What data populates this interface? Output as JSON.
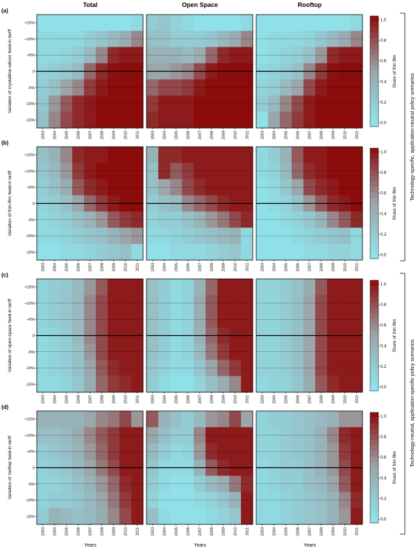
{
  "figure": {
    "column_titles": [
      "Total",
      "Open Space",
      "Rooftop"
    ],
    "row_labels": [
      "(a)",
      "(b)",
      "(c)",
      "(d)"
    ],
    "row_ylabels": [
      "Variation of crystalline-silicon feed-in tariff",
      "Variation of thin-film feed-in tariff",
      "Variation of open-space feed-in tariff",
      "Variation of rooftop feed-in tariff"
    ],
    "xlabel": "Years",
    "colorbar_label": "Share of thin film",
    "colorbar_ticks": [
      "1.0",
      "0.8",
      "0.6",
      "0.4",
      "0.2",
      "0.0"
    ],
    "scenario_labels": [
      "Technology-specific, application-neutral policy scenarios",
      "Technology-neutral, application-specific policy scenarios"
    ],
    "colors": {
      "low": "#8fe6ef",
      "mid": "#9aa6aa",
      "high": "#8c0b0b",
      "background": "#ffffff"
    }
  },
  "chart_data": {
    "type": "heatmap",
    "x": [
      "2003",
      "2004",
      "2005",
      "2006",
      "2007",
      "2008",
      "2009",
      "2010",
      "2011"
    ],
    "y": [
      "+15%",
      "+10%",
      "+5%",
      "0",
      "-5%",
      "-10%",
      "-15%"
    ],
    "y_values": [
      15,
      10,
      5,
      0,
      -5,
      -10,
      -15
    ],
    "value_range": [
      0,
      1
    ],
    "colorbar_ticks": [
      0.0,
      0.2,
      0.4,
      0.6,
      0.8,
      1.0
    ],
    "grid": "dotted lines at +10%, +5%, -5%, -10%; solid line at 0",
    "note": "Cell values are shares of thin film, estimated from colour; rows top to bottom = +15% to -15%",
    "panels": [
      {
        "row": "(a)",
        "column": "Total",
        "values": [
          [
            0.05,
            0.05,
            0.05,
            0.05,
            0.05,
            0.05,
            0.05,
            0.05,
            0.1
          ],
          [
            0.1,
            0.1,
            0.1,
            0.1,
            0.2,
            0.25,
            0.35,
            0.45,
            0.6
          ],
          [
            0.1,
            0.1,
            0.15,
            0.2,
            0.35,
            0.6,
            0.9,
            0.95,
            0.95
          ],
          [
            0.15,
            0.2,
            0.25,
            0.35,
            0.7,
            0.9,
            0.98,
            1.0,
            1.0
          ],
          [
            0.2,
            0.3,
            0.5,
            0.6,
            0.85,
            0.95,
            1.0,
            1.0,
            1.0
          ],
          [
            0.25,
            0.55,
            0.75,
            0.9,
            0.95,
            1.0,
            1.0,
            1.0,
            1.0
          ],
          [
            0.3,
            0.6,
            0.8,
            0.9,
            0.95,
            1.0,
            1.0,
            1.0,
            1.0
          ]
        ]
      },
      {
        "row": "(a)",
        "column": "Open Space",
        "values": [
          [
            0.2,
            0.25,
            0.15,
            0.1,
            0.05,
            0.05,
            0.05,
            0.05,
            0.1
          ],
          [
            0.3,
            0.3,
            0.2,
            0.2,
            0.2,
            0.25,
            0.35,
            0.45,
            0.6
          ],
          [
            0.4,
            0.4,
            0.4,
            0.35,
            0.45,
            0.7,
            0.9,
            0.95,
            0.95
          ],
          [
            0.5,
            0.5,
            0.55,
            0.6,
            0.8,
            0.95,
            1.0,
            1.0,
            1.0
          ],
          [
            0.7,
            0.8,
            0.8,
            0.85,
            0.95,
            1.0,
            1.0,
            1.0,
            1.0
          ],
          [
            0.85,
            0.95,
            0.95,
            0.95,
            1.0,
            1.0,
            1.0,
            1.0,
            1.0
          ],
          [
            0.9,
            0.95,
            0.95,
            0.95,
            1.0,
            1.0,
            1.0,
            1.0,
            1.0
          ]
        ]
      },
      {
        "row": "(a)",
        "column": "Rooftop",
        "values": [
          [
            0.05,
            0.05,
            0.05,
            0.05,
            0.05,
            0.05,
            0.05,
            0.05,
            0.1
          ],
          [
            0.05,
            0.1,
            0.1,
            0.1,
            0.15,
            0.25,
            0.35,
            0.45,
            0.6
          ],
          [
            0.05,
            0.1,
            0.15,
            0.2,
            0.3,
            0.55,
            0.9,
            0.95,
            0.95
          ],
          [
            0.1,
            0.15,
            0.2,
            0.3,
            0.6,
            0.85,
            0.98,
            1.0,
            1.0
          ],
          [
            0.15,
            0.2,
            0.35,
            0.5,
            0.8,
            0.95,
            1.0,
            1.0,
            1.0
          ],
          [
            0.2,
            0.35,
            0.6,
            0.8,
            0.95,
            1.0,
            1.0,
            1.0,
            1.0
          ],
          [
            0.05,
            0.5,
            0.7,
            0.85,
            0.95,
            1.0,
            1.0,
            1.0,
            1.0
          ]
        ]
      },
      {
        "row": "(b)",
        "column": "Total",
        "values": [
          [
            0.3,
            0.4,
            0.6,
            0.9,
            0.95,
            0.95,
            1.0,
            1.0,
            1.0
          ],
          [
            0.25,
            0.35,
            0.55,
            0.85,
            0.95,
            1.0,
            1.0,
            1.0,
            1.0
          ],
          [
            0.2,
            0.3,
            0.45,
            0.75,
            0.9,
            0.95,
            1.0,
            1.0,
            1.0
          ],
          [
            0.15,
            0.2,
            0.3,
            0.5,
            0.7,
            0.85,
            0.95,
            1.0,
            1.0
          ],
          [
            0.1,
            0.15,
            0.2,
            0.3,
            0.4,
            0.55,
            0.75,
            0.85,
            0.9
          ],
          [
            0.1,
            0.1,
            0.15,
            0.2,
            0.25,
            0.3,
            0.4,
            0.5,
            0.55
          ],
          [
            0.05,
            0.05,
            0.1,
            0.1,
            0.15,
            0.2,
            0.25,
            0.3,
            0.1
          ]
        ]
      },
      {
        "row": "(b)",
        "column": "Open Space",
        "values": [
          [
            0.4,
            0.9,
            0.9,
            0.95,
            0.95,
            0.95,
            0.95,
            0.95,
            0.95
          ],
          [
            0.3,
            0.9,
            0.75,
            0.85,
            0.95,
            0.95,
            0.95,
            0.95,
            0.95
          ],
          [
            0.3,
            0.5,
            0.6,
            0.8,
            0.9,
            0.95,
            0.95,
            0.95,
            0.95
          ],
          [
            0.2,
            0.3,
            0.35,
            0.6,
            0.7,
            0.8,
            0.9,
            0.95,
            0.95
          ],
          [
            0.15,
            0.2,
            0.2,
            0.3,
            0.4,
            0.55,
            0.65,
            0.8,
            0.9
          ],
          [
            0.1,
            0.1,
            0.15,
            0.2,
            0.25,
            0.3,
            0.35,
            0.4,
            0.1
          ],
          [
            0.05,
            0.05,
            0.1,
            0.1,
            0.1,
            0.15,
            0.2,
            0.25,
            0.1
          ]
        ]
      },
      {
        "row": "(b)",
        "column": "Rooftop",
        "values": [
          [
            0.1,
            0.2,
            0.4,
            0.75,
            0.95,
            0.95,
            1.0,
            1.0,
            1.0
          ],
          [
            0.1,
            0.15,
            0.35,
            0.7,
            0.9,
            0.95,
            1.0,
            1.0,
            1.0
          ],
          [
            0.05,
            0.1,
            0.25,
            0.5,
            0.8,
            0.9,
            0.95,
            1.0,
            1.0
          ],
          [
            0.05,
            0.1,
            0.15,
            0.3,
            0.55,
            0.75,
            0.9,
            0.95,
            1.0
          ],
          [
            0.05,
            0.05,
            0.1,
            0.15,
            0.25,
            0.4,
            0.6,
            0.75,
            0.9
          ],
          [
            0.05,
            0.05,
            0.05,
            0.1,
            0.15,
            0.2,
            0.25,
            0.3,
            0.1
          ],
          [
            0.05,
            0.05,
            0.05,
            0.05,
            0.1,
            0.1,
            0.15,
            0.15,
            0.1
          ]
        ]
      },
      {
        "row": "(c)",
        "column": "Total",
        "values": [
          [
            0.15,
            0.2,
            0.25,
            0.35,
            0.55,
            0.75,
            0.95,
            0.95,
            0.95
          ],
          [
            0.15,
            0.2,
            0.25,
            0.35,
            0.6,
            0.8,
            0.95,
            0.95,
            0.95
          ],
          [
            0.15,
            0.2,
            0.25,
            0.35,
            0.6,
            0.8,
            0.95,
            0.95,
            0.95
          ],
          [
            0.1,
            0.15,
            0.2,
            0.35,
            0.6,
            0.8,
            0.95,
            0.95,
            0.95
          ],
          [
            0.1,
            0.15,
            0.2,
            0.3,
            0.55,
            0.8,
            0.95,
            0.95,
            0.95
          ],
          [
            0.1,
            0.15,
            0.2,
            0.3,
            0.5,
            0.75,
            0.9,
            0.95,
            0.95
          ],
          [
            0.1,
            0.1,
            0.15,
            0.25,
            0.45,
            0.7,
            0.85,
            0.9,
            0.95
          ]
        ]
      },
      {
        "row": "(c)",
        "column": "Open Space",
        "values": [
          [
            0.3,
            0.2,
            0.1,
            0.15,
            0.4,
            0.7,
            0.95,
            0.95,
            0.95
          ],
          [
            0.3,
            0.2,
            0.1,
            0.15,
            0.45,
            0.75,
            0.95,
            0.95,
            0.95
          ],
          [
            0.3,
            0.2,
            0.1,
            0.15,
            0.45,
            0.75,
            0.95,
            0.95,
            0.95
          ],
          [
            0.3,
            0.2,
            0.1,
            0.15,
            0.4,
            0.7,
            0.9,
            0.95,
            0.95
          ],
          [
            0.3,
            0.2,
            0.1,
            0.15,
            0.35,
            0.65,
            0.85,
            0.95,
            0.95
          ],
          [
            0.25,
            0.15,
            0.1,
            0.1,
            0.25,
            0.5,
            0.7,
            0.85,
            0.95
          ],
          [
            0.2,
            0.1,
            0.05,
            0.05,
            0.15,
            0.3,
            0.45,
            0.6,
            0.95
          ]
        ]
      },
      {
        "row": "(c)",
        "column": "Rooftop",
        "values": [
          [
            0.15,
            0.15,
            0.2,
            0.3,
            0.45,
            0.75,
            0.95,
            0.95,
            0.95
          ],
          [
            0.15,
            0.15,
            0.2,
            0.3,
            0.5,
            0.8,
            0.95,
            0.95,
            0.95
          ],
          [
            0.15,
            0.15,
            0.2,
            0.3,
            0.5,
            0.8,
            0.95,
            0.95,
            0.95
          ],
          [
            0.15,
            0.15,
            0.2,
            0.3,
            0.5,
            0.8,
            0.95,
            0.95,
            0.95
          ],
          [
            0.15,
            0.15,
            0.2,
            0.3,
            0.5,
            0.8,
            0.95,
            0.95,
            0.95
          ],
          [
            0.15,
            0.15,
            0.2,
            0.3,
            0.5,
            0.8,
            0.95,
            0.95,
            0.95
          ],
          [
            0.1,
            0.15,
            0.15,
            0.25,
            0.45,
            0.75,
            0.9,
            0.95,
            0.95
          ]
        ]
      },
      {
        "row": "(d)",
        "column": "Total",
        "values": [
          [
            0.4,
            0.4,
            0.4,
            0.4,
            0.5,
            0.6,
            0.65,
            0.8,
            0.55
          ],
          [
            0.3,
            0.3,
            0.35,
            0.45,
            0.6,
            0.75,
            0.85,
            0.95,
            0.95
          ],
          [
            0.2,
            0.25,
            0.3,
            0.4,
            0.55,
            0.7,
            0.85,
            0.95,
            0.95
          ],
          [
            0.15,
            0.2,
            0.25,
            0.35,
            0.5,
            0.65,
            0.8,
            0.95,
            0.95
          ],
          [
            0.15,
            0.15,
            0.2,
            0.3,
            0.4,
            0.55,
            0.7,
            0.9,
            0.95
          ],
          [
            0.15,
            0.2,
            0.2,
            0.25,
            0.35,
            0.5,
            0.65,
            0.85,
            0.95
          ],
          [
            0.2,
            0.4,
            0.35,
            0.3,
            0.35,
            0.45,
            0.6,
            0.8,
            0.95
          ]
        ]
      },
      {
        "row": "(d)",
        "column": "Open Space",
        "values": [
          [
            0.75,
            0.4,
            0.3,
            0.2,
            0.35,
            0.55,
            0.6,
            0.8,
            0.5
          ],
          [
            0.5,
            0.3,
            0.2,
            0.2,
            0.6,
            0.95,
            0.95,
            0.95,
            0.95
          ],
          [
            0.35,
            0.2,
            0.1,
            0.15,
            0.55,
            0.9,
            0.95,
            0.95,
            0.95
          ],
          [
            0.25,
            0.1,
            0.1,
            0.1,
            0.4,
            0.75,
            0.9,
            0.95,
            0.95
          ],
          [
            0.2,
            0.1,
            0.05,
            0.05,
            0.2,
            0.35,
            0.45,
            0.65,
            0.9
          ],
          [
            0.15,
            0.05,
            0.05,
            0.05,
            0.1,
            0.15,
            0.25,
            0.4,
            0.95
          ],
          [
            0.3,
            0.1,
            0.05,
            0.05,
            0.05,
            0.1,
            0.15,
            0.25,
            0.95
          ]
        ]
      },
      {
        "row": "(d)",
        "column": "Rooftop",
        "values": [
          [
            0.15,
            0.2,
            0.2,
            0.25,
            0.3,
            0.35,
            0.4,
            0.55,
            0.55
          ],
          [
            0.15,
            0.15,
            0.2,
            0.25,
            0.3,
            0.4,
            0.6,
            0.9,
            0.95
          ],
          [
            0.15,
            0.15,
            0.2,
            0.25,
            0.3,
            0.4,
            0.55,
            0.85,
            0.95
          ],
          [
            0.1,
            0.15,
            0.2,
            0.2,
            0.3,
            0.4,
            0.55,
            0.8,
            0.95
          ],
          [
            0.1,
            0.15,
            0.2,
            0.2,
            0.3,
            0.35,
            0.5,
            0.75,
            0.95
          ],
          [
            0.1,
            0.1,
            0.15,
            0.2,
            0.25,
            0.3,
            0.4,
            0.6,
            0.9
          ],
          [
            0.1,
            0.1,
            0.15,
            0.2,
            0.25,
            0.3,
            0.4,
            0.55,
            0.95
          ]
        ]
      }
    ]
  }
}
